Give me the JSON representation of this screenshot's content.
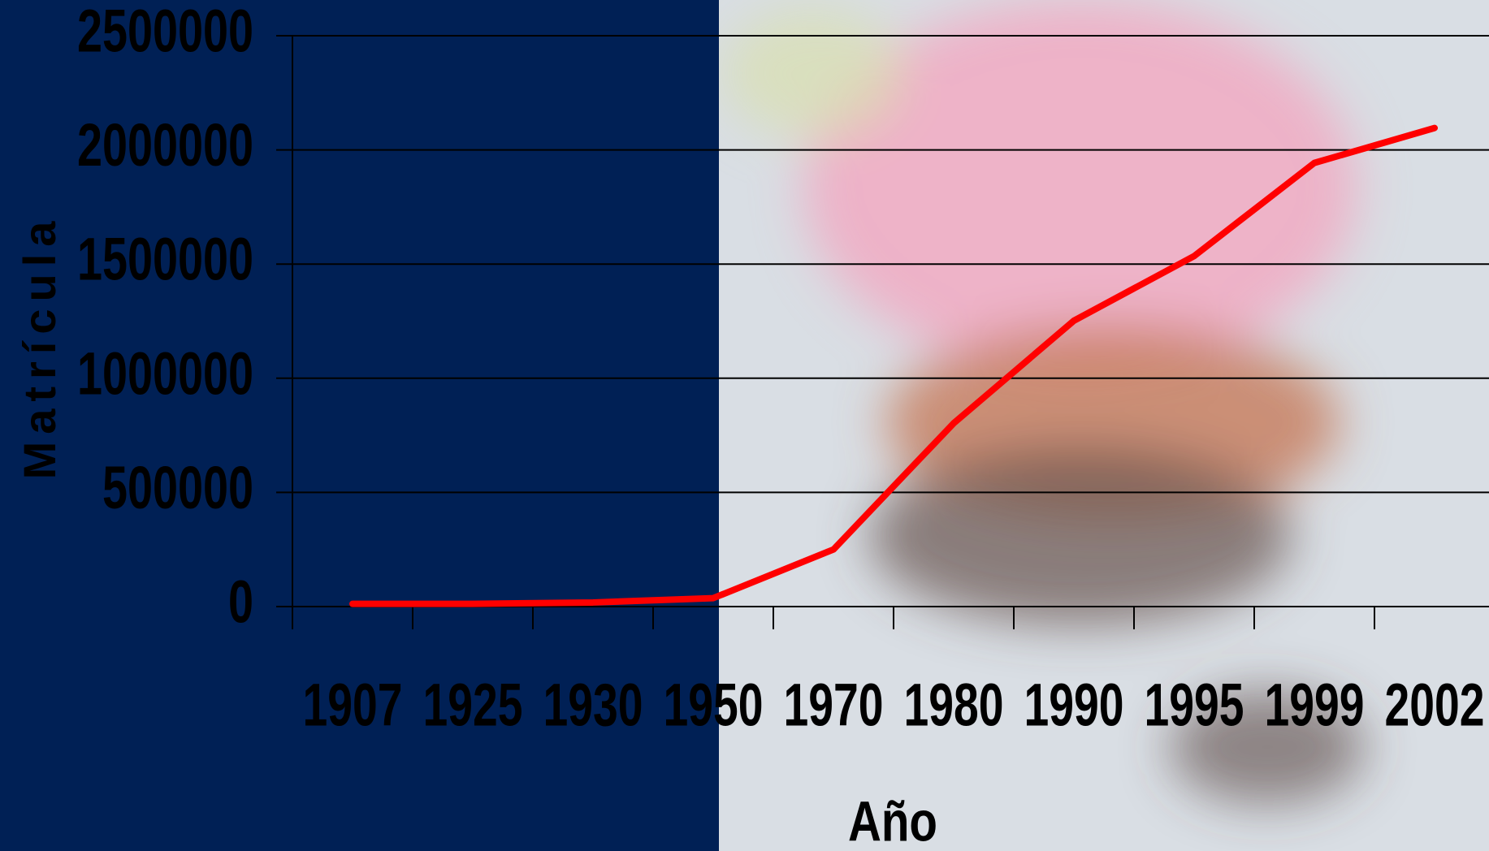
{
  "chart_data": {
    "type": "line",
    "x_label": "Año",
    "y_label": "Matrícula",
    "categories": [
      "1907",
      "1925",
      "1930",
      "1950",
      "1970",
      "1980",
      "1990",
      "1995",
      "1999",
      "2002"
    ],
    "series": [
      {
        "name": "Matrícula",
        "color": "#ff0000",
        "values": [
          12000,
          12000,
          18000,
          37000,
          250000,
          803000,
          1252000,
          1535000,
          1943000,
          2096000
        ]
      }
    ],
    "ylim": [
      0,
      2500000
    ],
    "yticks": [
      0,
      500000,
      1000000,
      1500000,
      2000000,
      2500000
    ],
    "grid": true
  }
}
